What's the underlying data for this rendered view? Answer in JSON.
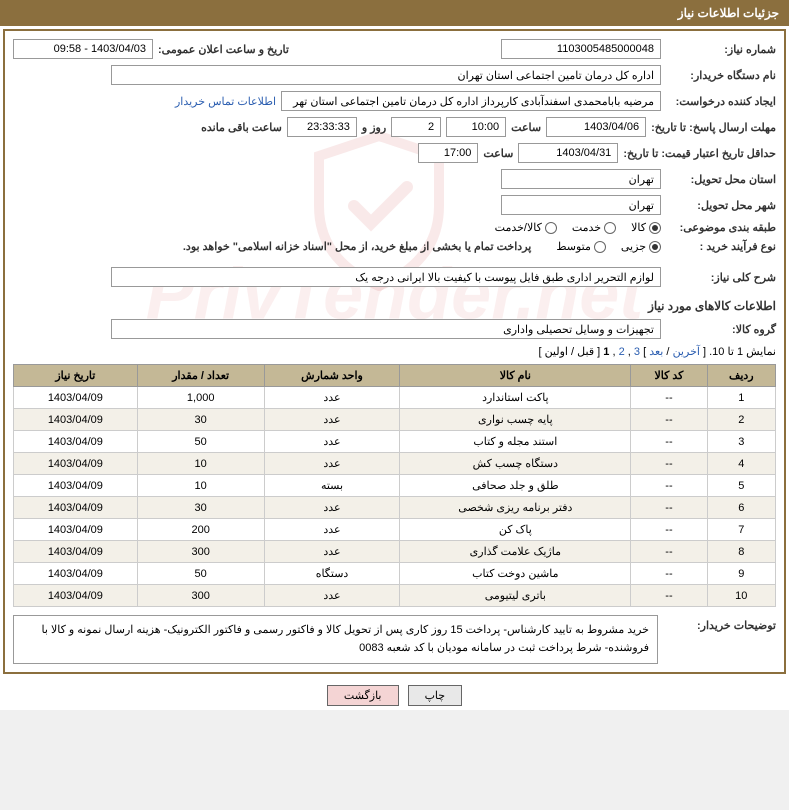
{
  "header": {
    "title": "جزئیات اطلاعات نیاز"
  },
  "form": {
    "need_number_label": "شماره نیاز:",
    "need_number": "1103005485000048",
    "announce_label": "تاریخ و ساعت اعلان عمومی:",
    "announce_value": "1403/04/03 - 09:58",
    "buyer_label": "نام دستگاه خریدار:",
    "buyer_value": "اداره کل درمان تامین اجتماعی استان تهران",
    "requester_label": "ایجاد کننده درخواست:",
    "requester_value": "مرضیه بابامحمدی اسفندآبادی کارپرداز اداره کل درمان تامین اجتماعی استان تهر",
    "contact_link": "اطلاعات تماس خریدار",
    "deadline_label": "مهلت ارسال پاسخ: تا تاریخ:",
    "deadline_date": "1403/04/06",
    "time_label": "ساعت",
    "deadline_time": "10:00",
    "days_value": "2",
    "days_label": "روز و",
    "remain_time": "23:33:33",
    "remain_label": "ساعت باقی مانده",
    "validity_label": "حداقل تاریخ اعتبار قیمت: تا تاریخ:",
    "validity_date": "1403/04/31",
    "validity_time": "17:00",
    "province_label": "استان محل تحویل:",
    "province_value": "تهران",
    "city_label": "شهر محل تحویل:",
    "city_value": "تهران",
    "category_label": "طبقه بندی موضوعی:",
    "cat_goods": "کالا",
    "cat_service": "خدمت",
    "cat_goods_service": "کالا/خدمت",
    "process_label": "نوع فرآیند خرید :",
    "proc_partial": "جزیی",
    "proc_medium": "متوسط",
    "proc_note": "پرداخت تمام یا بخشی از مبلغ خرید، از محل \"اسناد خزانه اسلامی\" خواهد بود.",
    "summary_label": "شرح کلی نیاز:",
    "summary_value": "لوازم التحریر اداری طبق فایل پیوست با کیفیت بالا ایرانی درجه یک",
    "goods_section": "اطلاعات کالاهای مورد نیاز",
    "group_label": "گروه کالا:",
    "group_value": "تجهیزات و وسایل تحصیلی واداری",
    "buyer_desc_label": "توضیحات خریدار:",
    "buyer_desc": "خرید مشروط به تایید کارشناس- پرداخت 15 روز کاری پس از تحویل کالا و فاکتور رسمی و فاکتور الکترونیک- هزینه ارسال نمونه و کالا با فروشنده- شرط پرداخت ثبت در سامانه مودیان با کد شعبه 0083"
  },
  "pagination": {
    "text_prefix": "نمایش 1 تا 10. [ ",
    "last": "آخرین",
    "sep": " / ",
    "next": "بعد",
    "p3": "3",
    "p2": "2",
    "p1": "1",
    "prev": "قبل",
    "first": "اولین",
    "text_suffix": "]"
  },
  "table": {
    "headers": {
      "row": "ردیف",
      "code": "کد کالا",
      "name": "نام کالا",
      "unit": "واحد شمارش",
      "qty": "تعداد / مقدار",
      "date": "تاریخ نیاز"
    },
    "rows": [
      {
        "n": "1",
        "code": "--",
        "name": "پاکت استاندارد",
        "unit": "عدد",
        "qty": "1,000",
        "date": "1403/04/09"
      },
      {
        "n": "2",
        "code": "--",
        "name": "پایه چسب نواری",
        "unit": "عدد",
        "qty": "30",
        "date": "1403/04/09"
      },
      {
        "n": "3",
        "code": "--",
        "name": "استند مجله و کتاب",
        "unit": "عدد",
        "qty": "50",
        "date": "1403/04/09"
      },
      {
        "n": "4",
        "code": "--",
        "name": "دستگاه چسب کش",
        "unit": "عدد",
        "qty": "10",
        "date": "1403/04/09"
      },
      {
        "n": "5",
        "code": "--",
        "name": "طلق و جلد صحافی",
        "unit": "بسته",
        "qty": "10",
        "date": "1403/04/09"
      },
      {
        "n": "6",
        "code": "--",
        "name": "دفتر برنامه ریزی شخصی",
        "unit": "عدد",
        "qty": "30",
        "date": "1403/04/09"
      },
      {
        "n": "7",
        "code": "--",
        "name": "پاک کن",
        "unit": "عدد",
        "qty": "200",
        "date": "1403/04/09"
      },
      {
        "n": "8",
        "code": "--",
        "name": "ماژیک علامت گذاری",
        "unit": "عدد",
        "qty": "300",
        "date": "1403/04/09"
      },
      {
        "n": "9",
        "code": "--",
        "name": "ماشین دوخت کتاب",
        "unit": "دستگاه",
        "qty": "50",
        "date": "1403/04/09"
      },
      {
        "n": "10",
        "code": "--",
        "name": "باتری لیتیومی",
        "unit": "عدد",
        "qty": "300",
        "date": "1403/04/09"
      }
    ]
  },
  "buttons": {
    "print": "چاپ",
    "back": "بازگشت"
  }
}
